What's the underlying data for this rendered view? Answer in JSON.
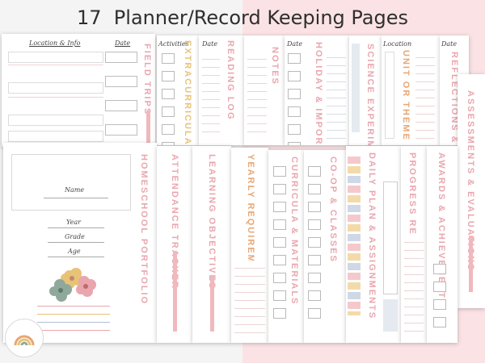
{
  "title": "17  Planner/Record Keeping Pages",
  "back_row": [
    {
      "label": "Field Trips"
    },
    {
      "label": "Extracurricular"
    },
    {
      "label": "Reading Log"
    },
    {
      "label": "Notes"
    },
    {
      "label": "Holiday & Important"
    },
    {
      "label": "Science Experiments"
    },
    {
      "label": "Unit or Theme Overview"
    },
    {
      "label": "Reflections & Self-"
    },
    {
      "label": "Assessments & Evaluations"
    }
  ],
  "front_row": [
    {
      "label": "Homeschool Portfolio"
    },
    {
      "label": "Attendance Tracker"
    },
    {
      "label": "Learning Objectives"
    },
    {
      "label": "Yearly Requirements"
    },
    {
      "label": "Curricula & Materials"
    },
    {
      "label": "Co-op & Classes"
    },
    {
      "label": "Daily Plan & Assignments"
    },
    {
      "label": "Progress Report"
    },
    {
      "label": "Awards & Achievements"
    }
  ],
  "headers": {
    "location": "Location & Info",
    "date": "Date",
    "activities": "Activities",
    "date2": "Date",
    "date3": "Date",
    "location2": "Location",
    "date4": "Date"
  },
  "portfolio": {
    "name": "Name",
    "year": "Year",
    "grade": "Grade",
    "age": "Age"
  },
  "colors": {
    "pink": "#e9a6ae",
    "peach": "#f2c3a2",
    "gold": "#e8c277",
    "blue": "#aebfd4",
    "sage": "#8fa89c"
  }
}
